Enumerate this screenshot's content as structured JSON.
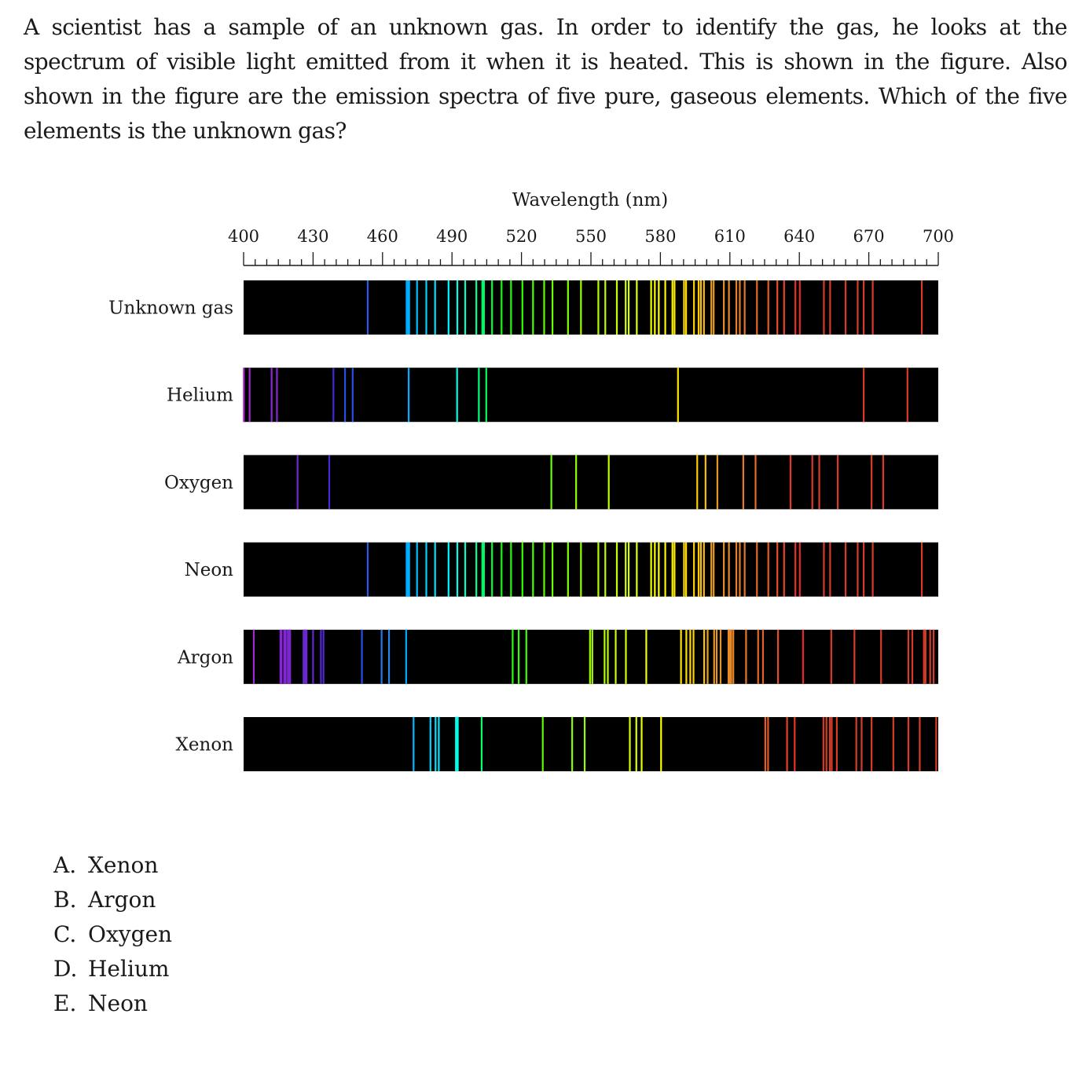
{
  "question": "A scientist has a sample of an unknown gas. In order to identify the gas, he looks at the spectrum of visible light emitted from it when it is heated. This is shown in the figure. Also shown in the figure are the emission spectra of five pure, gaseous elements. Which of the five elements is the unknown gas?",
  "chart_data": {
    "type": "spectrum",
    "xlabel": "Wavelength (nm)",
    "xlim": [
      400,
      700
    ],
    "ticks": [
      400,
      430,
      460,
      490,
      520,
      550,
      580,
      610,
      640,
      670,
      700
    ],
    "minor_tick_step": 5,
    "background": "#000000",
    "spectra": [
      {
        "name": "Unknown gas",
        "lines": [
          453.6,
          470.4,
          471.0,
          471.5,
          474.9,
          478.9,
          482.7,
          488.5,
          492.3,
          495.7,
          500.5,
          503.1,
          503.8,
          507.3,
          511.4,
          515.5,
          520.4,
          525.0,
          529.8,
          533.4,
          540.1,
          545.7,
          553.2,
          556.2,
          561.2,
          565.0,
          566.3,
          569.8,
          576.0,
          577.6,
          579.3,
          582.1,
          585.2,
          586.1,
          590.2,
          591.1,
          594.5,
          596.5,
          597.5,
          598.8,
          602.0,
          603.0,
          607.4,
          609.6,
          612.8,
          614.3,
          616.4,
          621.7,
          626.6,
          630.5,
          633.4,
          638.3,
          640.2,
          650.6,
          653.3,
          660.0,
          665.2,
          667.8,
          671.7,
          692.9
        ]
      },
      {
        "name": "Helium",
        "lines": [
          400.1,
          402.6,
          412.1,
          414.4,
          438.8,
          443.8,
          447.1,
          471.3,
          492.2,
          501.6,
          504.8,
          587.6,
          667.8,
          686.7
        ]
      },
      {
        "name": "Oxygen",
        "lines": [
          423.3,
          437.0,
          532.9,
          543.6,
          557.7,
          595.9,
          599.5,
          604.6,
          615.8,
          621.1,
          636.2,
          645.6,
          648.6,
          656.6,
          671.2,
          676.2
        ]
      },
      {
        "name": "Neon",
        "lines": [
          453.6,
          470.4,
          471.0,
          471.5,
          474.9,
          478.9,
          482.7,
          488.5,
          492.3,
          495.7,
          500.5,
          503.1,
          503.8,
          507.3,
          511.4,
          515.5,
          520.4,
          525.0,
          529.8,
          533.4,
          540.1,
          545.7,
          553.2,
          556.2,
          561.2,
          565.0,
          566.3,
          569.8,
          576.0,
          577.6,
          579.3,
          582.1,
          585.2,
          586.1,
          590.2,
          591.1,
          594.5,
          596.5,
          597.5,
          598.8,
          602.0,
          603.0,
          607.4,
          609.6,
          612.8,
          614.3,
          616.4,
          621.7,
          626.6,
          630.5,
          633.4,
          638.3,
          640.2,
          650.6,
          653.3,
          660.0,
          665.2,
          667.8,
          671.7,
          692.9
        ]
      },
      {
        "name": "Argon",
        "lines": [
          404.4,
          415.9,
          416.4,
          417.5,
          418.2,
          419.1,
          419.8,
          420.1,
          425.9,
          426.6,
          427.2,
          430.0,
          433.4,
          434.5,
          451.1,
          459.6,
          462.8,
          470.2,
          516.2,
          518.8,
          522.1,
          549.6,
          550.6,
          555.9,
          557.3,
          560.7,
          565.1,
          573.9,
          588.9,
          591.2,
          592.9,
          594.3,
          598.9,
          600.4,
          603.2,
          604.3,
          606.0,
          609.4,
          610.0,
          610.6,
          611.5,
          617.0,
          622.2,
          624.3,
          630.8,
          641.6,
          653.8,
          663.8,
          675.3,
          687.1,
          688.8,
          693.8,
          694.5,
          696.5,
          698.0
        ]
      },
      {
        "name": "Xenon",
        "lines": [
          473.4,
          480.7,
          482.9,
          484.3,
          491.7,
          492.1,
          492.5,
          502.8,
          529.2,
          541.9,
          547.3,
          566.8,
          569.6,
          571.9,
          580.3,
          625.3,
          626.5,
          634.7,
          638.0,
          650.4,
          651.7,
          653.2,
          654.0,
          656.2,
          664.6,
          666.9,
          671.2,
          680.6,
          687.1,
          692.0,
          699.1
        ]
      }
    ]
  },
  "choices": [
    {
      "letter": "A.",
      "text": "Xenon"
    },
    {
      "letter": "B.",
      "text": "Argon"
    },
    {
      "letter": "C.",
      "text": "Oxygen"
    },
    {
      "letter": "D.",
      "text": "Helium"
    },
    {
      "letter": "E.",
      "text": "Neon"
    }
  ]
}
